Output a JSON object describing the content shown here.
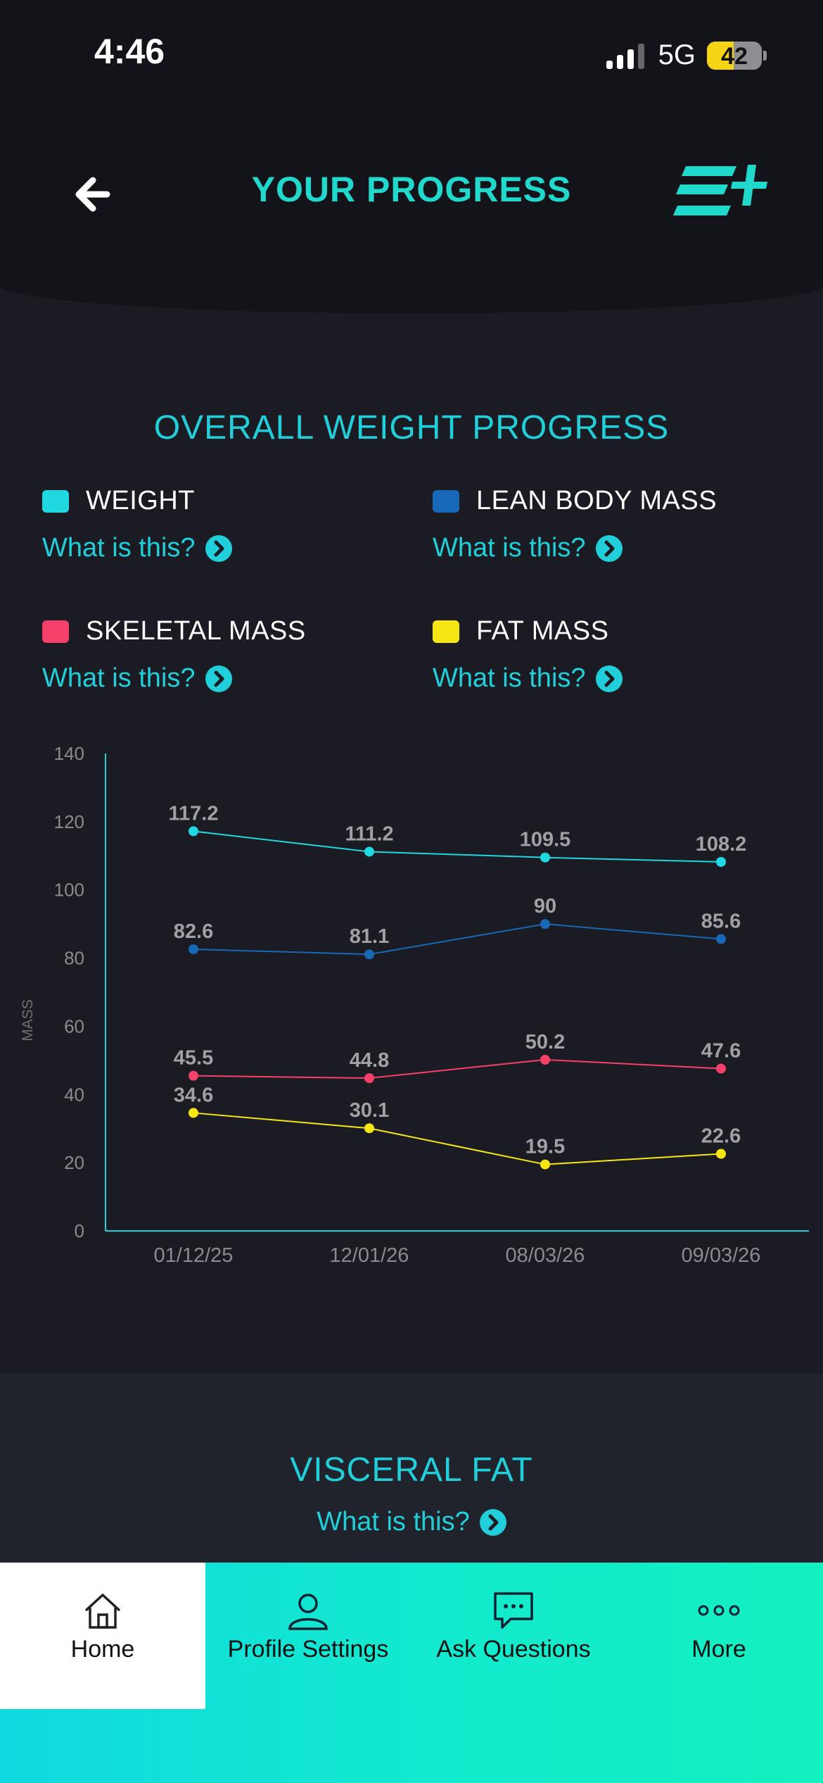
{
  "status": {
    "time": "4:46",
    "network": "5G",
    "battery": "42"
  },
  "header": {
    "title": "YOUR PROGRESS",
    "back_icon": "arrow-left-icon",
    "logo_icon": "brand-logo-icon"
  },
  "section1": {
    "title": "OVERALL WEIGHT PROGRESS",
    "legend": [
      {
        "label": "WEIGHT",
        "color": "#1fd8e0",
        "help": "What is this?"
      },
      {
        "label": "LEAN BODY MASS",
        "color": "#1769b8",
        "help": "What is this?"
      },
      {
        "label": "SKELETAL MASS",
        "color": "#f5406a",
        "help": "What is this?"
      },
      {
        "label": "FAT MASS",
        "color": "#f5e614",
        "help": "What is this?"
      }
    ]
  },
  "chart_data": {
    "type": "line",
    "categories": [
      "01/12/25",
      "12/01/26",
      "08/03/26",
      "09/03/26"
    ],
    "ylabel": "MASS",
    "ylim": [
      0,
      140
    ],
    "yticks": [
      0,
      20,
      40,
      60,
      80,
      100,
      120,
      140
    ],
    "grid": false,
    "series": [
      {
        "name": "WEIGHT",
        "color": "#1fd8e0",
        "values": [
          117.2,
          111.2,
          109.5,
          108.2
        ]
      },
      {
        "name": "LEAN BODY MASS",
        "color": "#1769b8",
        "values": [
          82.6,
          81.1,
          90,
          85.6
        ]
      },
      {
        "name": "SKELETAL MASS",
        "color": "#f5406a",
        "values": [
          45.5,
          44.8,
          50.2,
          47.6
        ]
      },
      {
        "name": "FAT MASS",
        "color": "#f5e614",
        "values": [
          34.6,
          30.1,
          19.5,
          22.6
        ]
      }
    ]
  },
  "section2": {
    "title": "VISCERAL FAT",
    "help": "What is this?"
  },
  "tabbar": {
    "tabs": [
      {
        "label": "Home",
        "icon": "home-icon"
      },
      {
        "label": "Profile Settings",
        "icon": "profile-icon"
      },
      {
        "label": "Ask Questions",
        "icon": "chat-icon"
      },
      {
        "label": "More",
        "icon": "more-icon"
      }
    ]
  }
}
